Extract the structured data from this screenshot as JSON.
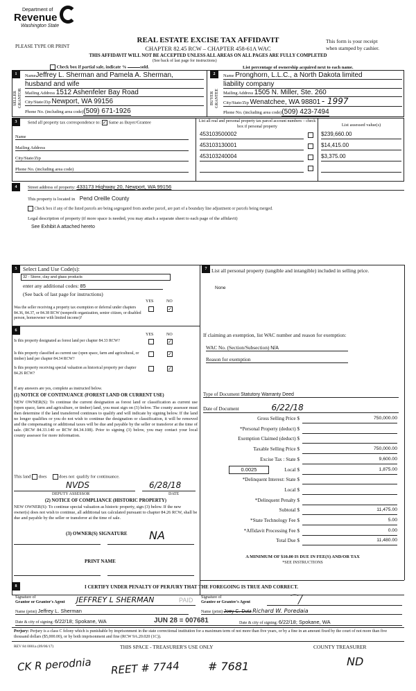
{
  "header": {
    "logo_line1": "Department of",
    "logo_line2": "Revenue",
    "logo_line3": "Washington State",
    "please": "PLEASE TYPE OR PRINT",
    "title": "REAL ESTATE EXCISE TAX AFFIDAVIT",
    "chapter": "CHAPTER 82.45 RCW – CHAPTER 458-61A WAC",
    "warning": "THIS AFFIDAVIT WILL NOT BE ACCEPTED UNLESS ALL AREAS ON ALL PAGES ARE FULLY COMPLETED",
    "see_back": "(See back of last page for instructions)",
    "receipt1": "This form is your receipt",
    "receipt2": "when stamped by cashier.",
    "partial": "Check box if partial sale, indicate %",
    "sold": "sold.",
    "list_pct": "List percentage of ownership acquired next to each name."
  },
  "seller": {
    "num": "1",
    "side": "SELLER GRANTOR",
    "name_label": "Name",
    "name": "Jeffrey L. Sherman and Pamela A. Sherman,",
    "name2": "husband and wife",
    "addr_label": "Mailing Address",
    "addr": "1512 Ashenfeler Bay Road",
    "city_label": "City/State/Zip",
    "city": "Newport, WA 99156",
    "phone_label": "Phone No. (including area code)",
    "phone": "(509) 671-1926"
  },
  "buyer": {
    "num": "2",
    "side": "BUYER GRANTEE",
    "name_label": "Name",
    "name": "Pronghorn, L.L.C., a North Dakota limited",
    "name2": "liability company",
    "addr_label": "Mailing Address",
    "addr": "1505 N. Miller, Ste. 260",
    "city_label": "City/State/Zip",
    "city": "Wenatchee, WA 98801",
    "city_hw": "- 1997",
    "phone_label": "Phone No. (including area code)",
    "phone": "(509) 423-7494"
  },
  "sec3": {
    "num": "3",
    "send": "Send all property tax correspondence to:",
    "same": "Same as Buyer/Grantee",
    "same_checked": true,
    "name_label": "Name",
    "addr_label": "Mailing Address",
    "city_label": "City/State/Zip",
    "phone_label": "Phone No. (including area code)",
    "parcel_header": "List all real and personal property tax parcel account numbers – check box if personal property",
    "value_header": "List assessed value(s)",
    "parcels": [
      {
        "num": "453103500002",
        "value": "$239,660.00"
      },
      {
        "num": "453103130001",
        "value": "$14,415.00"
      },
      {
        "num": "453103240004",
        "value": "$3,375.00"
      },
      {
        "num": "",
        "value": ""
      }
    ]
  },
  "sec4": {
    "num": "4",
    "street_label": "Street address of property:",
    "street": "433173 Highway 20, Newport, WA 99156",
    "located": "This property is located in",
    "county": "Pend Oreille County",
    "segregated": "Check box if any of the listed parcels are being segregated from another parcel, are part of a boundary line adjustment or parcels being merged.",
    "legal_label": "Legal description of property (if more space is needed, you may attach a separate sheet to each page of the affidavit)",
    "legal": "See Exhibit A attached hereto"
  },
  "sec5": {
    "num": "5",
    "label": "Select Land Use Code(s):",
    "code": "32 - Stone, clay and glass products",
    "additional_label": "enter any additional codes:",
    "additional": "85",
    "see_back": "(See back of last page for instructions)",
    "yes": "YES",
    "no": "NO",
    "q": "Was the seller receiving a property tax exemption or deferral under chapters 84.36, 84.37, or 84.38 RCW (nonprofit organization, senior citizen, or disabled person, homeowner with limited income)?",
    "q_answer": "NO"
  },
  "sec6": {
    "num": "6",
    "yes": "YES",
    "no": "NO",
    "questions": [
      {
        "q": "Is this property designated as forest land per chapter 84.33 RCW?",
        "answer": "NO"
      },
      {
        "q": "Is this property classified as current use (open space, farm and agricultural, or timber) land per chapter 84.34 RCW?",
        "answer": "NO"
      },
      {
        "q": "Is this property receiving special valuation as historical property per chapter 84.26 RCW?",
        "answer": "NO"
      }
    ],
    "if_yes": "If any answers are yes, complete as instructed below.",
    "n1_title": "(1) NOTICE OF CONTINUANCE  (FOREST LAND OR CURRENT USE)",
    "n1_text": "NEW OWNER(S): To continue the current designation as forest land or classification as current use (open space, farm and agriculture, or timber) land, you must sign on (3) below. The county assessor must then determine if the land transferred continues to qualify and will indicate by signing below. If the land no longer qualifies or you do not wish to continue the designation or classification, it will be removed and the compensating or additional taxes will be due and payable by the seller or transferor at the time of sale. (RCW 84.33.140 or RCW 84.34.108). Prior to signing (3) below, you may contact your local county assessor for more information.",
    "this_land": "This land",
    "does": "does",
    "does_not": "does not",
    "qualify": "qualify for continuance.",
    "assessor_sig": "NVDS",
    "assessor_date": "6/28/18",
    "deputy": "DEPUTY ASSESSOR",
    "date": "DATE",
    "n2_title": "(2) NOTICE OF COMPLIANCE (HISTORIC PROPERTY)",
    "n2_text": "NEW OWNER(S): To continue special valuation as historic property, sign (3) below. If the new owner(s) does not wish to continue, all additional tax calculated pursuant to chapter 84.26 RCW, shall be due and payable by the seller or transferor at the time of sale.",
    "owner_sig": "(3)  OWNER(S) SIGNATURE",
    "owner_hw": "NA",
    "print_name": "PRINT NAME"
  },
  "sec7": {
    "num": "7",
    "label": "List all  personal property (tangible and intangible) included in selling price.",
    "value": "None",
    "exempt_label": "If claiming an exemption, list WAC number and reason for exemption:",
    "wac_label": "WAC No. (Section/Subsection)",
    "wac": "N/A",
    "reason_label": "Reason for exemption",
    "doc_type_label": "Type of Document",
    "doc_type": "Statutory Warranty Deed",
    "doc_date_label": "Date of Document",
    "doc_date": "6/22/18",
    "rate": "0.0025",
    "fees": [
      {
        "label": "Gross Selling Price $",
        "value": "750,000.00"
      },
      {
        "label": "*Personal Property (deduct) $",
        "value": ""
      },
      {
        "label": "Exemption Claimed (deduct) $",
        "value": ""
      },
      {
        "label": "Taxable Selling Price $",
        "value": "750,000.00"
      },
      {
        "label": "Excise Tax : State $",
        "value": "9,600.00"
      },
      {
        "label": "Local $",
        "value": "1,875.00"
      },
      {
        "label": "*Delinquent Interest: State $",
        "value": ""
      },
      {
        "label": "Local $",
        "value": ""
      },
      {
        "label": "*Delinquent Penalty $",
        "value": ""
      },
      {
        "label": "Subtotal $",
        "value": "11,475.00"
      },
      {
        "label": "*State Technology Fee $",
        "value": "5.00"
      },
      {
        "label": "*Affidavit Processing Fee $",
        "value": "0.00"
      },
      {
        "label": "Total Due $",
        "value": "11,480.00"
      }
    ],
    "minimum": "A MINIMUM OF $10.00 IS DUE IN FEE(S) AND/OR TAX",
    "see_instr": "*SEE INSTRUCTIONS"
  },
  "sec8": {
    "num": "8",
    "certify": "I CERTIFY UNDER PENALTY OF PERJURY THAT THE FOREGOING IS TRUE AND CORRECT.",
    "grantor_sig_label1": "Signature of",
    "grantor_sig_label2": "Grantor or Grantor's Agent",
    "grantor_sig": "JEFFREY L SHERMAN",
    "grantor_name_label": "Name (print)",
    "grantor_name": "Jeffrey L. Sherman",
    "grantor_date_label": "Date & city of signing:",
    "grantor_date": "6/22/18; Spokane, WA",
    "grantee_sig_label1": "Signature of",
    "grantee_sig_label2": "Grantee or Grantee's Agent",
    "grantee_name_label": "Name (print)",
    "grantee_name_struck": "Joey C. Dutz",
    "grantee_name": "Richard W. Poredaia",
    "grantee_date_label": "Date & city of signing:",
    "grantee_date": "6/22/18; Spokane, WA",
    "stamp": "JUN 28 ≡ 007681",
    "stamp_paid": "PAID"
  },
  "footer": {
    "perjury_label": "Perjury:",
    "perjury": "Perjury is a class C felony which is punishable by imprisonment in the state correctional institution for a maximum term of not more than five years, or by a fine in an amount fixed by the court of not more than five thousand dollars ($5,000.00), or by both imprisonment and fine (RCW 9A.20.020 (1C)).",
    "rev": "REV 84 0001a (09/06/17)",
    "treasurer_space": "THIS SPACE - TREASURER'S USE ONLY",
    "county_treasurer": "COUNTY TREASURER",
    "hw1": "CK R perodnia",
    "hw2": "REET # 7744",
    "hw3": "# 7681",
    "hw4": "ND"
  }
}
